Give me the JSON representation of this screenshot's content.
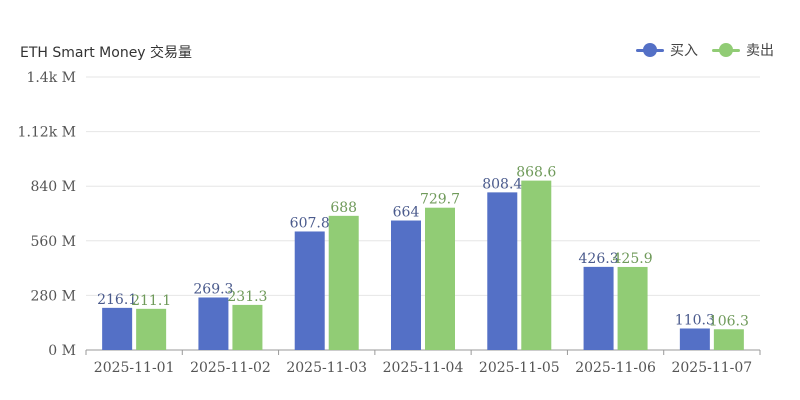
{
  "colors": {
    "buy": "#5470c6",
    "sell": "#91cc75",
    "grid": "#e6e6e6",
    "axis": "#999999"
  },
  "chart_data": {
    "type": "bar",
    "title": "ETH Smart Money 交易量",
    "categories": [
      "2025-11-01",
      "2025-11-02",
      "2025-11-03",
      "2025-11-04",
      "2025-11-05",
      "2025-11-06",
      "2025-11-07"
    ],
    "series": [
      {
        "name": "买入",
        "values": [
          216.1,
          269.3,
          607.8,
          664,
          808.4,
          426.3,
          110.3
        ]
      },
      {
        "name": "卖出",
        "values": [
          211.1,
          231.3,
          688,
          729.7,
          868.6,
          425.9,
          106.3
        ]
      }
    ],
    "ylim": [
      0,
      1400
    ],
    "y_ticks": [
      0,
      280,
      560,
      840,
      1120,
      1400
    ],
    "y_tick_labels": [
      "0 M",
      "280 M",
      "560 M",
      "840 M",
      "1.12k M",
      "1.4k M"
    ],
    "grid": true,
    "legend_position": "top-right"
  }
}
